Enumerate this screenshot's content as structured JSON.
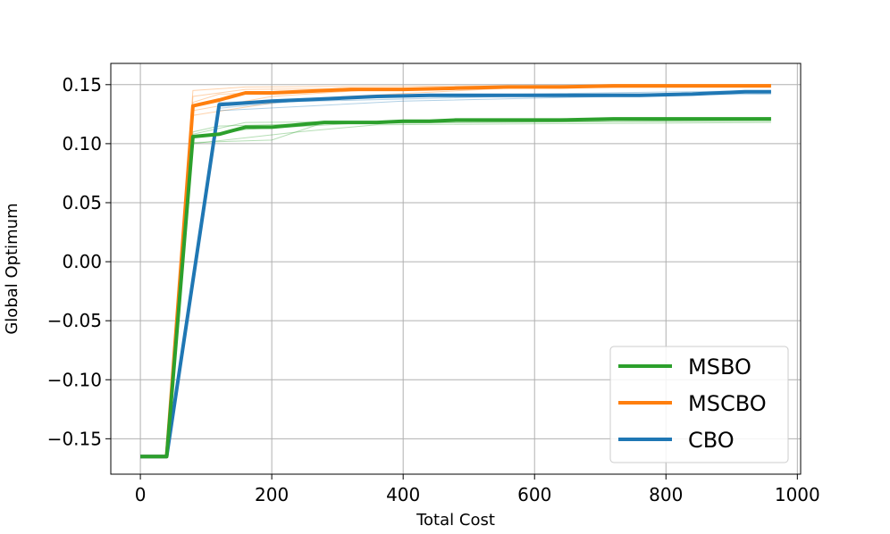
{
  "chart_data": {
    "type": "line",
    "title": "",
    "xlabel": "Total Cost",
    "ylabel": "Global Optimum",
    "xlim": [
      -45,
      1005
    ],
    "ylim": [
      -0.18,
      0.168
    ],
    "x_ticks": [
      0,
      200,
      400,
      600,
      800,
      1000
    ],
    "x_tick_labels": [
      "0",
      "200",
      "400",
      "600",
      "800",
      "1000"
    ],
    "y_ticks": [
      -0.15,
      -0.1,
      -0.05,
      0.0,
      0.05,
      0.1,
      0.15
    ],
    "y_tick_labels": [
      "−0.15",
      "−0.10",
      "−0.05",
      "0.00",
      "0.05",
      "0.10",
      "0.15"
    ],
    "grid": true,
    "legend_position": "lower-right",
    "series": [
      {
        "name": "MSBO",
        "color": "#2ca02c",
        "points": [
          [
            0,
            -0.165
          ],
          [
            40,
            -0.165
          ],
          [
            80,
            0.106
          ],
          [
            120,
            0.108
          ],
          [
            160,
            0.114
          ],
          [
            200,
            0.114
          ],
          [
            240,
            0.116
          ],
          [
            280,
            0.118
          ],
          [
            320,
            0.118
          ],
          [
            360,
            0.118
          ],
          [
            400,
            0.119
          ],
          [
            440,
            0.119
          ],
          [
            480,
            0.12
          ],
          [
            560,
            0.12
          ],
          [
            640,
            0.12
          ],
          [
            720,
            0.121
          ],
          [
            800,
            0.121
          ],
          [
            880,
            0.121
          ],
          [
            960,
            0.121
          ]
        ],
        "runs": [
          [
            [
              0,
              -0.165
            ],
            [
              40,
              -0.165
            ],
            [
              80,
              0.105
            ],
            [
              160,
              0.112
            ],
            [
              320,
              0.117
            ],
            [
              960,
              0.12
            ]
          ],
          [
            [
              0,
              -0.165
            ],
            [
              40,
              -0.165
            ],
            [
              80,
              0.101
            ],
            [
              200,
              0.103
            ],
            [
              280,
              0.118
            ],
            [
              960,
              0.119
            ]
          ],
          [
            [
              0,
              -0.165
            ],
            [
              40,
              -0.165
            ],
            [
              80,
              0.11
            ],
            [
              120,
              0.115
            ],
            [
              400,
              0.119
            ],
            [
              960,
              0.122
            ]
          ],
          [
            [
              0,
              -0.165
            ],
            [
              40,
              -0.165
            ],
            [
              80,
              0.1
            ],
            [
              240,
              0.11
            ],
            [
              360,
              0.116
            ],
            [
              960,
              0.118
            ]
          ],
          [
            [
              0,
              -0.165
            ],
            [
              40,
              -0.165
            ],
            [
              80,
              0.108
            ],
            [
              160,
              0.118
            ],
            [
              960,
              0.121
            ]
          ]
        ]
      },
      {
        "name": "MSCBO",
        "color": "#ff7f0e",
        "points": [
          [
            0,
            -0.165
          ],
          [
            40,
            -0.165
          ],
          [
            80,
            0.132
          ],
          [
            120,
            0.137
          ],
          [
            160,
            0.143
          ],
          [
            200,
            0.143
          ],
          [
            240,
            0.144
          ],
          [
            280,
            0.145
          ],
          [
            320,
            0.146
          ],
          [
            400,
            0.146
          ],
          [
            480,
            0.147
          ],
          [
            560,
            0.148
          ],
          [
            640,
            0.148
          ],
          [
            720,
            0.149
          ],
          [
            800,
            0.149
          ],
          [
            880,
            0.149
          ],
          [
            960,
            0.149
          ]
        ],
        "runs": [
          [
            [
              0,
              -0.165
            ],
            [
              40,
              -0.165
            ],
            [
              80,
              0.145
            ],
            [
              160,
              0.148
            ],
            [
              960,
              0.15
            ]
          ],
          [
            [
              0,
              -0.165
            ],
            [
              40,
              -0.165
            ],
            [
              80,
              0.128
            ],
            [
              200,
              0.14
            ],
            [
              360,
              0.146
            ],
            [
              960,
              0.149
            ]
          ],
          [
            [
              0,
              -0.165
            ],
            [
              40,
              -0.165
            ],
            [
              80,
              0.135
            ],
            [
              120,
              0.142
            ],
            [
              480,
              0.147
            ],
            [
              960,
              0.148
            ]
          ],
          [
            [
              0,
              -0.165
            ],
            [
              40,
              -0.165
            ],
            [
              80,
              0.124
            ],
            [
              240,
              0.138
            ],
            [
              560,
              0.147
            ],
            [
              960,
              0.15
            ]
          ],
          [
            [
              0,
              -0.165
            ],
            [
              40,
              -0.165
            ],
            [
              80,
              0.14
            ],
            [
              160,
              0.146
            ],
            [
              960,
              0.149
            ]
          ]
        ]
      },
      {
        "name": "CBO",
        "color": "#1f77b4",
        "points": [
          [
            0,
            -0.165
          ],
          [
            40,
            -0.165
          ],
          [
            120,
            0.133
          ],
          [
            200,
            0.136
          ],
          [
            280,
            0.138
          ],
          [
            360,
            0.14
          ],
          [
            440,
            0.141
          ],
          [
            520,
            0.141
          ],
          [
            600,
            0.141
          ],
          [
            680,
            0.141
          ],
          [
            760,
            0.141
          ],
          [
            840,
            0.142
          ],
          [
            920,
            0.144
          ],
          [
            960,
            0.144
          ]
        ],
        "runs": [
          [
            [
              0,
              -0.165
            ],
            [
              40,
              -0.165
            ],
            [
              120,
              0.13
            ],
            [
              320,
              0.14
            ],
            [
              960,
              0.145
            ]
          ],
          [
            [
              0,
              -0.165
            ],
            [
              40,
              -0.165
            ],
            [
              120,
              0.135
            ],
            [
              480,
              0.141
            ],
            [
              960,
              0.143
            ]
          ],
          [
            [
              0,
              -0.165
            ],
            [
              40,
              -0.165
            ],
            [
              120,
              0.128
            ],
            [
              400,
              0.136
            ],
            [
              880,
              0.142
            ],
            [
              960,
              0.144
            ]
          ],
          [
            [
              0,
              -0.165
            ],
            [
              40,
              -0.165
            ],
            [
              120,
              0.134
            ],
            [
              560,
              0.14
            ],
            [
              960,
              0.142
            ]
          ]
        ]
      }
    ]
  }
}
